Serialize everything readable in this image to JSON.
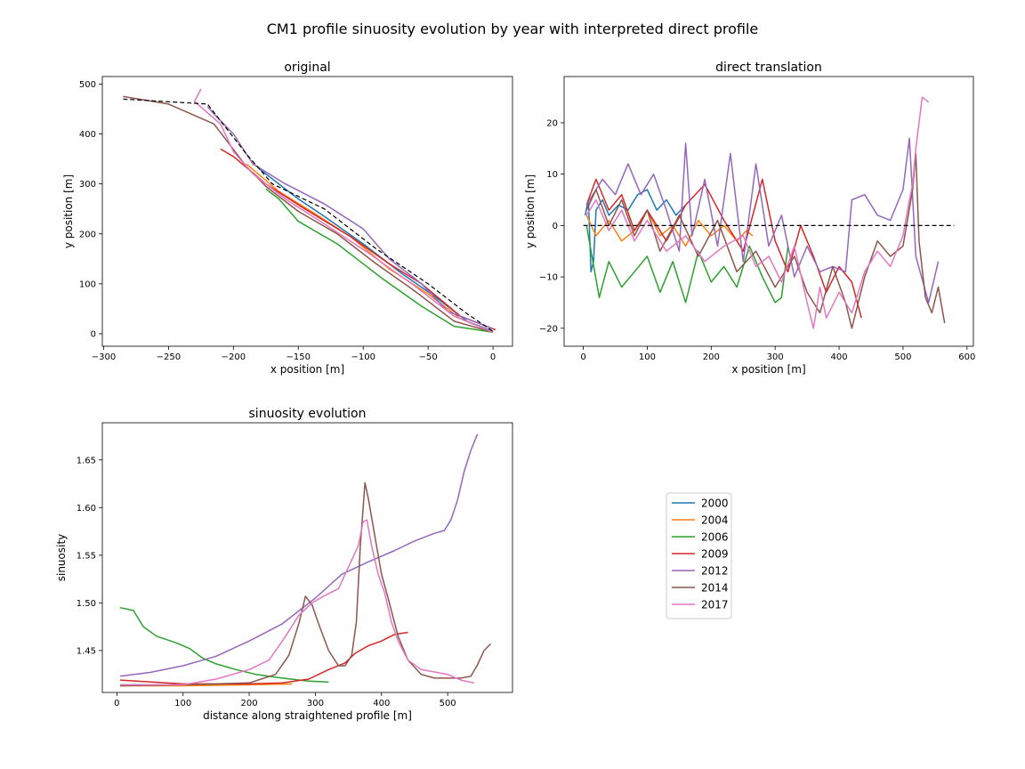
{
  "suptitle": "CM1 profile sinuosity evolution by year with interpreted direct profile",
  "legend": {
    "placement": "center-right",
    "entries": [
      {
        "label": "2000",
        "color": "#1f77b4"
      },
      {
        "label": "2004",
        "color": "#ff7f0e"
      },
      {
        "label": "2006",
        "color": "#2ca02c"
      },
      {
        "label": "2009",
        "color": "#d62728"
      },
      {
        "label": "2012",
        "color": "#9467bd"
      },
      {
        "label": "2014",
        "color": "#8c564b"
      },
      {
        "label": "2017",
        "color": "#e377c2"
      }
    ]
  },
  "chart_data": [
    {
      "type": "line",
      "title": "original",
      "xlabel": "x position [m]",
      "ylabel": "y position [m]",
      "xlim": [
        -301,
        15
      ],
      "ylim": [
        -25,
        515
      ],
      "xticks": [
        -300,
        -250,
        -200,
        -150,
        -100,
        -50,
        0
      ],
      "yticks": [
        0,
        100,
        200,
        300,
        400,
        500
      ],
      "grid": false,
      "reference": {
        "name": "interpreted direct profile",
        "style": "dashed",
        "color": "#000000",
        "x": [
          -285,
          -220,
          -190,
          -170,
          -130,
          -90,
          -50,
          -20,
          0
        ],
        "y": [
          470,
          460,
          360,
          300,
          250,
          170,
          100,
          40,
          5
        ]
      },
      "series": [
        {
          "name": "2000",
          "color": "#1f77b4",
          "x": [
            0,
            -20,
            -45,
            -70,
            -100,
            -130,
            -150,
            -180
          ],
          "y": [
            5,
            25,
            75,
            120,
            180,
            235,
            270,
            330
          ]
        },
        {
          "name": "2004",
          "color": "#ff7f0e",
          "x": [
            0,
            -25,
            -50,
            -80,
            -110,
            -140,
            -165,
            -190
          ],
          "y": [
            3,
            30,
            80,
            130,
            195,
            245,
            285,
            340
          ]
        },
        {
          "name": "2006",
          "color": "#2ca02c",
          "x": [
            0,
            -30,
            -55,
            -85,
            -120,
            -150,
            -165,
            -175
          ],
          "y": [
            3,
            15,
            55,
            110,
            180,
            225,
            270,
            290
          ]
        },
        {
          "name": "2009",
          "color": "#d62728",
          "x": [
            2,
            -25,
            -55,
            -80,
            -110,
            -145,
            -175,
            -200,
            -210
          ],
          "y": [
            8,
            35,
            100,
            140,
            195,
            250,
            300,
            355,
            370
          ]
        },
        {
          "name": "2012",
          "color": "#9467bd",
          "x": [
            0,
            -35,
            -55,
            -80,
            -100,
            -130,
            -160,
            -185,
            -200,
            -215,
            -220
          ],
          "y": [
            10,
            45,
            100,
            150,
            210,
            260,
            300,
            340,
            400,
            440,
            455
          ]
        },
        {
          "name": "2014",
          "color": "#8c564b",
          "x": [
            0,
            -30,
            -60,
            -90,
            -120,
            -150,
            -175,
            -190,
            -215,
            -250,
            -285
          ],
          "y": [
            3,
            25,
            85,
            140,
            200,
            245,
            295,
            335,
            420,
            460,
            475
          ]
        },
        {
          "name": "2017",
          "color": "#e377c2",
          "x": [
            0,
            -30,
            -60,
            -95,
            -130,
            -160,
            -185,
            -200,
            -210,
            -230,
            -225
          ],
          "y": [
            3,
            35,
            95,
            160,
            220,
            270,
            320,
            365,
            420,
            465,
            490
          ]
        }
      ]
    },
    {
      "type": "line",
      "title": "direct translation",
      "xlabel": "x position [m]",
      "ylabel": "y position [m]",
      "xlim": [
        -30,
        610
      ],
      "ylim": [
        -23.5,
        29
      ],
      "xticks": [
        0,
        100,
        200,
        300,
        400,
        500,
        600
      ],
      "yticks": [
        -20,
        -10,
        0,
        10,
        20
      ],
      "grid": false,
      "reference": {
        "name": "interpreted direct profile",
        "style": "dashed",
        "color": "#000000",
        "x": [
          0,
          580
        ],
        "y": [
          0,
          0
        ]
      },
      "series": [
        {
          "name": "2000",
          "color": "#1f77b4",
          "x": [
            3,
            8,
            12,
            16,
            20,
            30,
            40,
            55,
            70,
            85,
            100,
            115,
            130,
            145,
            160
          ],
          "y": [
            2,
            5,
            -9,
            -7,
            3,
            5,
            2,
            4,
            3,
            6,
            7,
            3,
            5,
            2,
            4
          ]
        },
        {
          "name": "2004",
          "color": "#ff7f0e",
          "x": [
            5,
            20,
            40,
            60,
            80,
            100,
            120,
            140,
            160,
            180,
            200,
            220,
            240,
            255,
            265
          ],
          "y": [
            2,
            -2,
            1,
            -3,
            -1,
            3,
            -2,
            0,
            -4,
            1,
            -2,
            0,
            -3,
            -1,
            -2
          ]
        },
        {
          "name": "2006",
          "color": "#2ca02c",
          "x": [
            5,
            25,
            40,
            60,
            80,
            100,
            120,
            140,
            160,
            180,
            200,
            220,
            240,
            260,
            280,
            300,
            310,
            320
          ],
          "y": [
            0,
            -14,
            -7,
            -12,
            -9,
            -6,
            -13,
            -7,
            -15,
            -5,
            -11,
            -8,
            -12,
            -4,
            -10,
            -15,
            -14,
            -4
          ]
        },
        {
          "name": "2009",
          "color": "#d62728",
          "x": [
            5,
            20,
            40,
            60,
            80,
            100,
            130,
            160,
            190,
            220,
            250,
            280,
            300,
            320,
            340,
            360,
            380,
            400,
            420,
            435
          ],
          "y": [
            4,
            9,
            3,
            6,
            -1,
            3,
            -3,
            4,
            8,
            1,
            -5,
            9,
            -3,
            -9,
            0,
            -6,
            -13,
            -8,
            -11,
            -18
          ]
        },
        {
          "name": "2012",
          "color": "#9467bd",
          "x": [
            5,
            30,
            50,
            70,
            90,
            110,
            130,
            150,
            160,
            170,
            190,
            210,
            230,
            250,
            270,
            290,
            310,
            330,
            350,
            370,
            390,
            410,
            420,
            440,
            460,
            480,
            500,
            510,
            520,
            540,
            555
          ],
          "y": [
            4,
            9,
            6,
            12,
            6,
            10,
            3,
            -5,
            16,
            -2,
            9,
            -4,
            14,
            -7,
            12,
            -4,
            2,
            -10,
            -4,
            -9,
            -8,
            -9,
            5,
            6,
            2,
            1,
            7,
            17,
            -6,
            -15,
            -7
          ]
        },
        {
          "name": "2014",
          "color": "#8c564b",
          "x": [
            5,
            20,
            40,
            60,
            80,
            100,
            120,
            150,
            180,
            210,
            240,
            270,
            300,
            330,
            350,
            370,
            390,
            410,
            420,
            440,
            460,
            480,
            500,
            515,
            520,
            525,
            535,
            545,
            555,
            565
          ],
          "y": [
            3,
            7,
            0,
            5,
            -2,
            3,
            -5,
            2,
            -6,
            1,
            -9,
            -5,
            -12,
            -6,
            -13,
            -17,
            -8,
            -15,
            -20,
            -10,
            -3,
            -6,
            -4,
            7,
            14,
            -3,
            -14,
            -17,
            -12,
            -19
          ]
        },
        {
          "name": "2017",
          "color": "#e377c2",
          "x": [
            5,
            20,
            40,
            60,
            80,
            100,
            130,
            160,
            190,
            220,
            250,
            270,
            290,
            310,
            330,
            350,
            360,
            370,
            380,
            400,
            420,
            440,
            460,
            480,
            500,
            510,
            515,
            520,
            530,
            540
          ],
          "y": [
            2,
            5,
            -1,
            3,
            -3,
            1,
            -5,
            -2,
            -7,
            -4,
            -2,
            -8,
            -6,
            -11,
            -4,
            -15,
            -20,
            -12,
            -18,
            -13,
            -17,
            -9,
            -5,
            -8,
            -2,
            5,
            8,
            15,
            25,
            24
          ]
        }
      ]
    },
    {
      "type": "line",
      "title": "sinuosity evolution",
      "xlabel": "distance along straightened profile [m]",
      "ylabel": "sinuosity",
      "xlim": [
        -22,
        598
      ],
      "ylim": [
        1.406,
        1.689
      ],
      "xticks": [
        0,
        100,
        200,
        300,
        400,
        500
      ],
      "yticks": [
        1.45,
        1.5,
        1.55,
        1.6,
        1.65
      ],
      "ytick_labels": [
        "1.45",
        "1.50",
        "1.55",
        "1.60",
        "1.65"
      ],
      "grid": false,
      "series": [
        {
          "name": "2000",
          "color": "#1f77b4",
          "x": [
            5,
            100,
            200
          ],
          "y": [
            1.414,
            1.414,
            1.414
          ]
        },
        {
          "name": "2004",
          "color": "#ff7f0e",
          "x": [
            5,
            100,
            200,
            265
          ],
          "y": [
            1.413,
            1.413,
            1.414,
            1.415
          ]
        },
        {
          "name": "2006",
          "color": "#2ca02c",
          "x": [
            5,
            25,
            40,
            60,
            90,
            110,
            130,
            150,
            180,
            210,
            250,
            290,
            320
          ],
          "y": [
            1.495,
            1.492,
            1.475,
            1.465,
            1.458,
            1.452,
            1.442,
            1.436,
            1.43,
            1.425,
            1.421,
            1.418,
            1.417
          ]
        },
        {
          "name": "2009",
          "color": "#d62728",
          "x": [
            5,
            100,
            200,
            250,
            290,
            320,
            345,
            360,
            380,
            400,
            420,
            440
          ],
          "y": [
            1.419,
            1.415,
            1.415,
            1.416,
            1.42,
            1.43,
            1.437,
            1.447,
            1.455,
            1.46,
            1.467,
            1.469
          ]
        },
        {
          "name": "2012",
          "color": "#9467bd",
          "x": [
            5,
            50,
            100,
            150,
            200,
            250,
            300,
            340,
            380,
            420,
            450,
            480,
            495,
            505,
            515,
            525,
            535,
            545
          ],
          "y": [
            1.423,
            1.427,
            1.434,
            1.444,
            1.46,
            1.478,
            1.505,
            1.53,
            1.543,
            1.555,
            1.565,
            1.573,
            1.576,
            1.587,
            1.608,
            1.638,
            1.66,
            1.677
          ]
        },
        {
          "name": "2014",
          "color": "#8c564b",
          "x": [
            5,
            100,
            200,
            240,
            260,
            275,
            285,
            295,
            305,
            320,
            335,
            345,
            355,
            362,
            368,
            375,
            380,
            390,
            400,
            410,
            425,
            440,
            460,
            480,
            500,
            520,
            535,
            545,
            555,
            565
          ],
          "y": [
            1.413,
            1.414,
            1.416,
            1.425,
            1.445,
            1.478,
            1.507,
            1.498,
            1.478,
            1.45,
            1.434,
            1.434,
            1.445,
            1.48,
            1.56,
            1.626,
            1.61,
            1.57,
            1.53,
            1.505,
            1.465,
            1.44,
            1.425,
            1.421,
            1.421,
            1.421,
            1.423,
            1.435,
            1.45,
            1.457
          ]
        },
        {
          "name": "2017",
          "color": "#e377c2",
          "x": [
            5,
            100,
            150,
            200,
            230,
            255,
            275,
            295,
            315,
            335,
            345,
            355,
            365,
            372,
            378,
            385,
            395,
            405,
            415,
            425,
            440,
            460,
            500,
            520,
            540
          ],
          "y": [
            1.414,
            1.414,
            1.42,
            1.43,
            1.44,
            1.465,
            1.487,
            1.5,
            1.508,
            1.515,
            1.53,
            1.545,
            1.56,
            1.585,
            1.587,
            1.56,
            1.53,
            1.51,
            1.48,
            1.46,
            1.44,
            1.43,
            1.425,
            1.419,
            1.416
          ]
        }
      ]
    }
  ]
}
